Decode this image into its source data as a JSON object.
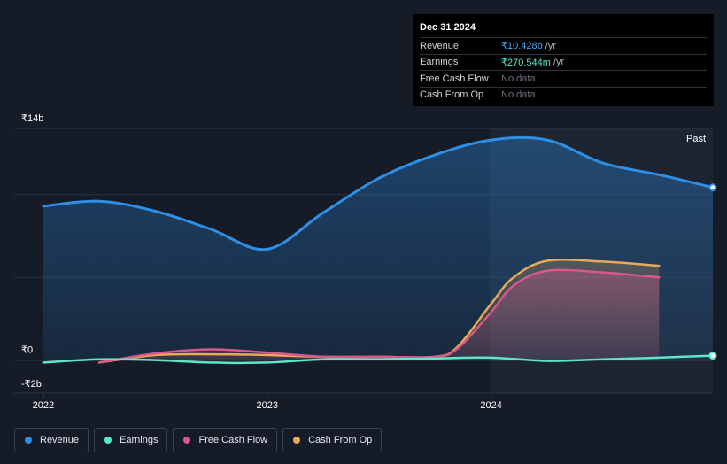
{
  "tooltip": {
    "date": "Dec 31 2024",
    "rows": [
      {
        "label": "Revenue",
        "value": "₹10.428b",
        "unit": "/yr",
        "color": "#4aa3f0"
      },
      {
        "label": "Earnings",
        "value": "₹270.544m",
        "unit": "/yr",
        "color": "#5ce8c8"
      },
      {
        "label": "Free Cash Flow",
        "value": "No data",
        "unit": "",
        "color": "#6b717c"
      },
      {
        "label": "Cash From Op",
        "value": "No data",
        "unit": "",
        "color": "#6b717c"
      }
    ]
  },
  "past_label": "Past",
  "legend": [
    {
      "label": "Revenue",
      "color": "#2f8fe6"
    },
    {
      "label": "Earnings",
      "color": "#5ce8c8"
    },
    {
      "label": "Free Cash Flow",
      "color": "#d9588c"
    },
    {
      "label": "Cash From Op",
      "color": "#e8a95a"
    }
  ],
  "chart_data": {
    "type": "line",
    "y_unit": "₹ billions",
    "yticks": [
      {
        "value": 14,
        "label": "₹14b"
      },
      {
        "value": 0,
        "label": "₹0"
      },
      {
        "value": -2,
        "label": "-₹2b"
      }
    ],
    "xticks": [
      {
        "value": 2022.0,
        "label": "2022"
      },
      {
        "value": 2023.0,
        "label": "2023"
      },
      {
        "value": 2024.0,
        "label": "2024"
      }
    ],
    "ylim": [
      -2,
      14
    ],
    "xlim": [
      2021.87,
      2024.99
    ],
    "gridlines": [
      14,
      10,
      5,
      0,
      -2
    ],
    "series": [
      {
        "name": "Revenue",
        "color": "#2f8fe6",
        "points": [
          [
            2022.0,
            9.3
          ],
          [
            2022.25,
            9.6
          ],
          [
            2022.5,
            9.0
          ],
          [
            2022.75,
            7.9
          ],
          [
            2023.0,
            6.7
          ],
          [
            2023.25,
            8.9
          ],
          [
            2023.5,
            11.0
          ],
          [
            2023.75,
            12.4
          ],
          [
            2024.0,
            13.3
          ],
          [
            2024.25,
            13.3
          ],
          [
            2024.5,
            11.9
          ],
          [
            2024.75,
            11.2
          ],
          [
            2024.99,
            10.43
          ]
        ]
      },
      {
        "name": "Earnings",
        "color": "#5ce8c8",
        "points": [
          [
            2022.0,
            -0.15
          ],
          [
            2022.25,
            0.05
          ],
          [
            2022.5,
            0.0
          ],
          [
            2022.75,
            -0.15
          ],
          [
            2023.0,
            -0.15
          ],
          [
            2023.25,
            0.05
          ],
          [
            2023.5,
            0.05
          ],
          [
            2023.75,
            0.1
          ],
          [
            2024.0,
            0.15
          ],
          [
            2024.25,
            -0.05
          ],
          [
            2024.5,
            0.05
          ],
          [
            2024.75,
            0.15
          ],
          [
            2024.99,
            0.27
          ]
        ]
      },
      {
        "name": "Free Cash Flow",
        "color": "#d9588c",
        "points": [
          [
            2022.25,
            -0.15
          ],
          [
            2022.5,
            0.4
          ],
          [
            2022.75,
            0.65
          ],
          [
            2023.0,
            0.45
          ],
          [
            2023.25,
            0.2
          ],
          [
            2023.5,
            0.2
          ],
          [
            2023.75,
            0.2
          ],
          [
            2023.85,
            0.7
          ],
          [
            2024.0,
            2.9
          ],
          [
            2024.1,
            4.5
          ],
          [
            2024.25,
            5.4
          ],
          [
            2024.5,
            5.3
          ],
          [
            2024.75,
            5.0
          ]
        ]
      },
      {
        "name": "Cash From Op",
        "color": "#e8a95a",
        "points": [
          [
            2022.25,
            -0.15
          ],
          [
            2022.5,
            0.3
          ],
          [
            2022.75,
            0.35
          ],
          [
            2023.0,
            0.3
          ],
          [
            2023.25,
            0.2
          ],
          [
            2023.5,
            0.2
          ],
          [
            2023.75,
            0.2
          ],
          [
            2023.85,
            0.8
          ],
          [
            2024.0,
            3.4
          ],
          [
            2024.1,
            5.0
          ],
          [
            2024.25,
            6.0
          ],
          [
            2024.5,
            5.95
          ],
          [
            2024.75,
            5.7
          ]
        ]
      }
    ]
  }
}
